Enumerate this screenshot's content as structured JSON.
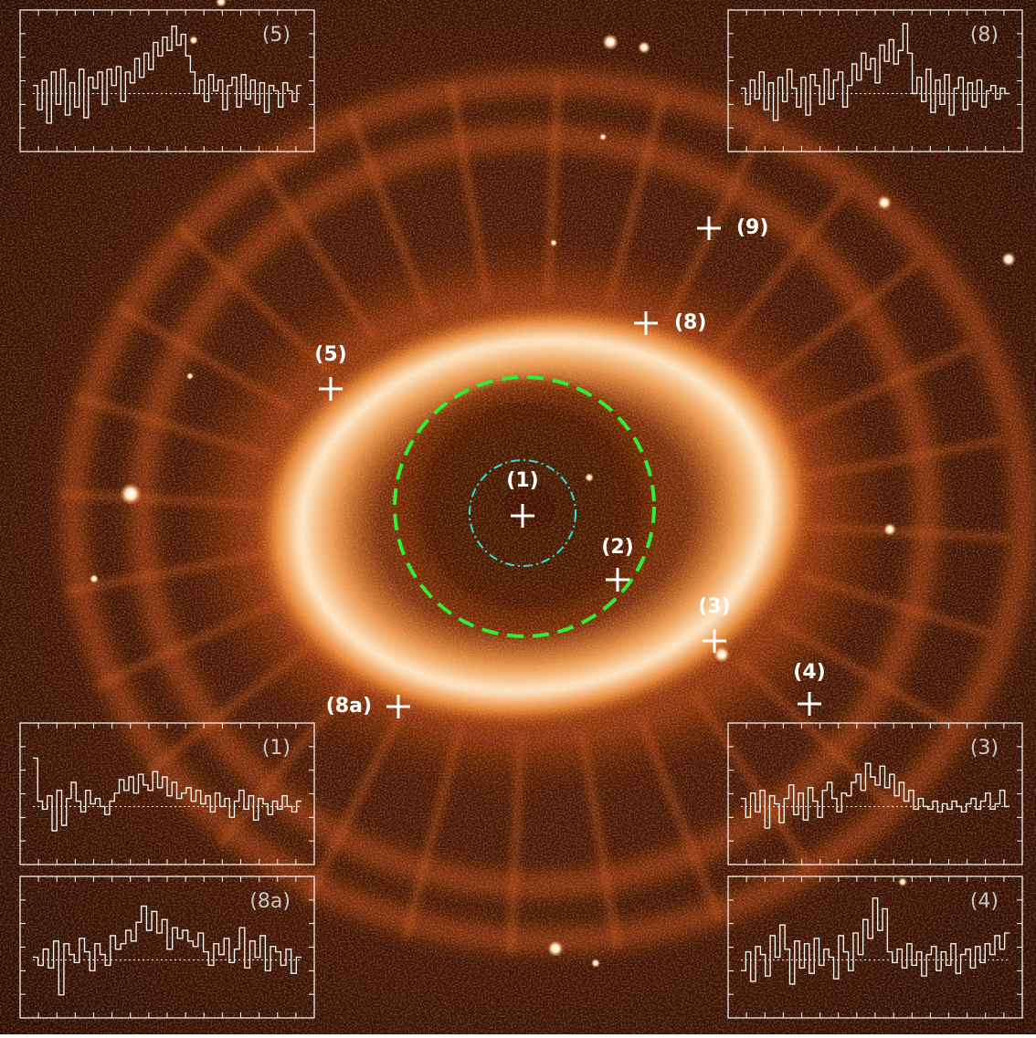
{
  "image": {
    "subject": "nebula",
    "colormap": "orange-heat",
    "marker_color": "#ffffff",
    "inner_circle_color": "#33ee33",
    "center_circle_color": "#33dddd"
  },
  "markers": [
    {
      "id": "1",
      "label": "(1)"
    },
    {
      "id": "2",
      "label": "(2)"
    },
    {
      "id": "3",
      "label": "(3)"
    },
    {
      "id": "4",
      "label": "(4)"
    },
    {
      "id": "5",
      "label": "(5)"
    },
    {
      "id": "8",
      "label": "(8)"
    },
    {
      "id": "8a",
      "label": "(8a)"
    },
    {
      "id": "9",
      "label": "(9)"
    }
  ],
  "insets": {
    "i5": {
      "label": "(5)",
      "spectrum": [
        0.3,
        -0.6,
        0.5,
        -1.1,
        0.8,
        -0.4,
        0.9,
        -0.8,
        0.4,
        -0.5,
        0.9,
        -0.9,
        0.6,
        0.2,
        0.8,
        -0.4,
        0.9,
        0.3,
        1.0,
        -0.3,
        0.8,
        0.4,
        1.3,
        0.6,
        1.5,
        0.9,
        1.9,
        1.4,
        2.1,
        1.6,
        2.5,
        1.8,
        2.2,
        1.4,
        0.8,
        0.0,
        0.5,
        -0.3,
        0.7,
        0.1,
        0.5,
        -0.6,
        0.3,
        0.6,
        -0.5,
        0.7,
        -0.2,
        0.5,
        -0.4,
        0.4,
        -0.7,
        0.3,
        0.1,
        -0.5,
        0.4,
        0.1,
        -0.3,
        0.3
      ]
    },
    "i8": {
      "label": "(8)",
      "spectrum": [
        0.2,
        -0.4,
        0.5,
        -0.2,
        0.8,
        -0.6,
        0.4,
        -1.0,
        0.6,
        -0.3,
        0.9,
        0.2,
        -0.5,
        0.6,
        -0.8,
        0.7,
        0.3,
        -0.4,
        0.9,
        -0.2,
        0.5,
        0.8,
        -0.5,
        0.3,
        1.1,
        0.5,
        1.5,
        0.9,
        1.3,
        0.4,
        1.8,
        1.2,
        2.0,
        1.1,
        1.6,
        2.6,
        1.5,
        0.0,
        0.6,
        -0.3,
        0.9,
        -0.7,
        0.5,
        -0.4,
        0.7,
        -0.8,
        0.2,
        0.6,
        -0.6,
        0.4,
        -0.3,
        0.5,
        -0.5,
        0.1,
        0.3,
        -0.2,
        0.2,
        0.0
      ]
    },
    "i1": {
      "label": "(1)",
      "spectrum": [
        1.8,
        0.2,
        -0.1,
        0.4,
        -0.9,
        0.6,
        -0.7,
        0.3,
        0.9,
        0.2,
        -0.2,
        0.6,
        0.1,
        0.3,
        0.0,
        -0.3,
        0.2,
        0.5,
        1.0,
        0.6,
        1.1,
        0.5,
        1.2,
        0.8,
        0.6,
        1.3,
        0.7,
        1.1,
        0.4,
        0.9,
        0.3,
        0.5,
        0.7,
        0.2,
        0.6,
        0.1,
        0.4,
        -0.2,
        0.5,
        0.0,
        0.3,
        -0.4,
        0.2,
        0.6,
        -0.1,
        0.4,
        -0.5,
        0.3,
        0.1,
        -0.3,
        0.2,
        -0.1,
        0.4,
        0.0,
        -0.2,
        0.2
      ]
    },
    "i3": {
      "label": "(3)",
      "spectrum": [
        0.3,
        -0.4,
        0.5,
        -0.2,
        0.6,
        -0.8,
        0.4,
        0.1,
        -0.6,
        0.3,
        0.8,
        -0.3,
        0.5,
        -0.5,
        0.7,
        0.2,
        -0.4,
        0.6,
        0.9,
        0.3,
        -0.2,
        0.5,
        0.4,
        0.9,
        1.2,
        0.6,
        1.6,
        1.1,
        0.8,
        1.5,
        0.7,
        1.2,
        0.4,
        0.9,
        0.2,
        0.6,
        -0.1,
        0.3,
        0.0,
        -0.1,
        0.2,
        -0.2,
        0.1,
        -0.1,
        0.2,
        0.0,
        -0.2,
        0.1,
        0.3,
        -0.1,
        0.2,
        0.5,
        -0.1,
        0.1,
        0.6,
        0.0
      ]
    },
    "i8a": {
      "label": "(8a)",
      "spectrum": [
        0.1,
        -0.2,
        0.4,
        -0.3,
        0.7,
        -1.3,
        0.6,
        0.2,
        -0.1,
        0.8,
        0.3,
        -0.4,
        0.6,
        0.2,
        -0.2,
        0.9,
        0.4,
        0.6,
        1.1,
        0.7,
        1.4,
        2.0,
        1.1,
        1.8,
        1.0,
        1.5,
        0.4,
        1.2,
        0.8,
        1.1,
        0.7,
        0.5,
        1.0,
        0.3,
        -0.2,
        0.6,
        0.2,
        0.8,
        -0.1,
        0.4,
        1.2,
        -0.3,
        0.7,
        0.1,
        0.9,
        -0.4,
        0.5,
        0.3,
        -0.2,
        0.4,
        -0.5,
        0.1
      ]
    },
    "i4": {
      "label": "(4)",
      "spectrum": [
        -0.4,
        0.3,
        -0.8,
        0.5,
        0.2,
        -0.6,
        0.9,
        0.1,
        1.3,
        0.4,
        -0.9,
        0.7,
        -0.3,
        0.6,
        -0.5,
        0.8,
        -0.2,
        0.4,
        0.1,
        -0.7,
        0.9,
        0.3,
        -0.4,
        1.0,
        0.2,
        1.5,
        0.8,
        2.3,
        1.1,
        1.9,
        0.3,
        -0.1,
        0.4,
        -0.3,
        0.6,
        -0.2,
        0.3,
        -0.6,
        0.2,
        0.5,
        -0.4,
        0.3,
        -0.2,
        0.6,
        -0.5,
        0.2,
        0.4,
        -0.3,
        0.5,
        -0.1,
        0.6,
        0.2,
        0.9,
        0.4,
        1.0
      ]
    }
  }
}
